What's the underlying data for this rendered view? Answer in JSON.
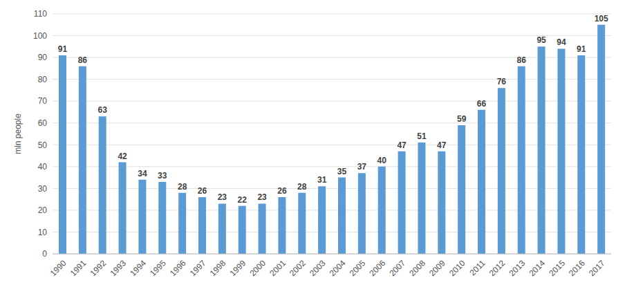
{
  "chart_data": {
    "type": "bar",
    "ylabel": "mln people",
    "categories": [
      "1990",
      "1991",
      "1992",
      "1993",
      "1994",
      "1995",
      "1996",
      "1997",
      "1998",
      "1999",
      "2000",
      "2001",
      "2002",
      "2003",
      "2004",
      "2005",
      "2006",
      "2007",
      "2008",
      "2009",
      "2010",
      "2011",
      "2012",
      "2013",
      "2014",
      "2015",
      "2016",
      "2017"
    ],
    "values": [
      91,
      86,
      63,
      42,
      34,
      33,
      28,
      26,
      23,
      22,
      23,
      26,
      28,
      31,
      35,
      37,
      40,
      47,
      51,
      47,
      59,
      66,
      76,
      86,
      95,
      94,
      91,
      105
    ],
    "color": "#5b9bd5",
    "ylim": [
      0,
      110
    ],
    "yticks": [
      0,
      10,
      20,
      30,
      40,
      50,
      60,
      70,
      80,
      90,
      100,
      110
    ],
    "grid": true,
    "data_labels": true
  }
}
